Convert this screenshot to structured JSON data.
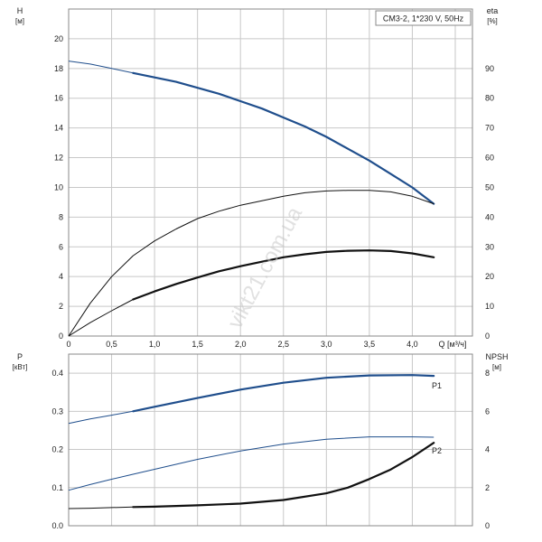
{
  "colors": {
    "grid": "#c8c8c8",
    "frame": "#8a8a8a",
    "blue": "#1f4e8c",
    "black": "#111111"
  },
  "watermark": "vikt21.com.ua",
  "chart_data": [
    {
      "type": "line",
      "title": "CM3-2, 1*230 V, 50Hz",
      "xlabel": "Q [м³/ч]",
      "ylabel": "H",
      "ylabel_unit": "[м]",
      "y2label": "eta",
      "y2label_unit": "[%]",
      "xlim": [
        0,
        4.7
      ],
      "ylim": [
        0,
        22
      ],
      "y2lim": [
        0,
        110
      ],
      "x_ticks": [
        {
          "v": 0,
          "t": "0"
        },
        {
          "v": 0.5,
          "t": "0,5"
        },
        {
          "v": 1.0,
          "t": "1,0"
        },
        {
          "v": 1.5,
          "t": "1,5"
        },
        {
          "v": 2.0,
          "t": "2,0"
        },
        {
          "v": 2.5,
          "t": "2,5"
        },
        {
          "v": 3.0,
          "t": "3,0"
        },
        {
          "v": 3.5,
          "t": "3,5"
        },
        {
          "v": 4.0,
          "t": "4,0"
        }
      ],
      "y_ticks": [
        {
          "v": 0,
          "t": "0"
        },
        {
          "v": 2,
          "t": "2"
        },
        {
          "v": 4,
          "t": "4"
        },
        {
          "v": 6,
          "t": "6"
        },
        {
          "v": 8,
          "t": "8"
        },
        {
          "v": 10,
          "t": "10"
        },
        {
          "v": 12,
          "t": "12"
        },
        {
          "v": 14,
          "t": "14"
        },
        {
          "v": 16,
          "t": "16"
        },
        {
          "v": 18,
          "t": "18"
        },
        {
          "v": 20,
          "t": "20"
        }
      ],
      "y2_ticks": [
        {
          "v": 0,
          "t": "0"
        },
        {
          "v": 10,
          "t": "10"
        },
        {
          "v": 20,
          "t": "20"
        },
        {
          "v": 30,
          "t": "30"
        },
        {
          "v": 40,
          "t": "40"
        },
        {
          "v": 50,
          "t": "50"
        },
        {
          "v": 60,
          "t": "60"
        },
        {
          "v": 70,
          "t": "70"
        },
        {
          "v": 80,
          "t": "80"
        },
        {
          "v": 90,
          "t": "90"
        }
      ],
      "series": [
        {
          "id": "h-curve",
          "axis": "y",
          "color": "blue",
          "thin_until": 0.75,
          "x": [
            0,
            0.25,
            0.5,
            0.75,
            1.0,
            1.25,
            1.5,
            1.75,
            2.0,
            2.25,
            2.5,
            2.75,
            3.0,
            3.25,
            3.5,
            3.75,
            4.0,
            4.25
          ],
          "y": [
            18.5,
            18.3,
            18.0,
            17.7,
            17.4,
            17.1,
            16.7,
            16.3,
            15.8,
            15.3,
            14.7,
            14.1,
            13.4,
            12.6,
            11.8,
            10.9,
            10.0,
            8.9
          ]
        },
        {
          "id": "eta-curve-1",
          "axis": "y2",
          "color": "black",
          "thin_until": 4.3,
          "x": [
            0,
            0.25,
            0.5,
            0.75,
            1.0,
            1.25,
            1.5,
            1.75,
            2.0,
            2.25,
            2.5,
            2.75,
            3.0,
            3.25,
            3.5,
            3.75,
            4.0,
            4.25
          ],
          "y": [
            0,
            11,
            20,
            27,
            32,
            36,
            39.5,
            42,
            44,
            45.5,
            47,
            48.2,
            48.8,
            49,
            49,
            48.5,
            47,
            44.5
          ]
        },
        {
          "id": "eta-curve-2",
          "axis": "y2",
          "color": "black",
          "thin_until": 0.75,
          "x": [
            0,
            0.25,
            0.5,
            0.75,
            1.0,
            1.25,
            1.5,
            1.75,
            2.0,
            2.25,
            2.5,
            2.75,
            3.0,
            3.25,
            3.5,
            3.75,
            4.0,
            4.25
          ],
          "y": [
            0,
            4.5,
            8.5,
            12.3,
            15,
            17.5,
            19.7,
            21.8,
            23.5,
            25,
            26.5,
            27.5,
            28.3,
            28.7,
            28.8,
            28.6,
            27.8,
            26.5
          ]
        }
      ]
    },
    {
      "type": "line",
      "xlim": [
        0,
        4.7
      ],
      "ylim": [
        0,
        0.45
      ],
      "y2lim": [
        0,
        9
      ],
      "ylabel": "P",
      "ylabel_unit": "[кВт]",
      "y2label": "NPSH",
      "y2label_unit": "[м]",
      "y_ticks": [
        {
          "v": 0,
          "t": "0.0"
        },
        {
          "v": 0.1,
          "t": "0.1"
        },
        {
          "v": 0.2,
          "t": "0.2"
        },
        {
          "v": 0.3,
          "t": "0.3"
        },
        {
          "v": 0.4,
          "t": "0.4"
        }
      ],
      "y2_ticks": [
        {
          "v": 0,
          "t": "0"
        },
        {
          "v": 2,
          "t": "2"
        },
        {
          "v": 4,
          "t": "4"
        },
        {
          "v": 6,
          "t": "6"
        },
        {
          "v": 8,
          "t": "8"
        }
      ],
      "series": [
        {
          "id": "p1-curve",
          "name": "P1",
          "axis": "y",
          "color": "blue",
          "thin_until": 0.75,
          "x": [
            0,
            0.25,
            0.5,
            0.75,
            1.0,
            1.5,
            2.0,
            2.5,
            3.0,
            3.5,
            4.0,
            4.25
          ],
          "y": [
            0.268,
            0.28,
            0.29,
            0.3,
            0.312,
            0.335,
            0.357,
            0.375,
            0.388,
            0.394,
            0.395,
            0.393
          ]
        },
        {
          "id": "p2-curve",
          "name": "P2",
          "axis": "y",
          "color": "blue",
          "thin_until": 4.3,
          "x": [
            0,
            0.25,
            0.5,
            0.75,
            1.0,
            1.5,
            2.0,
            2.5,
            3.0,
            3.5,
            4.0,
            4.25
          ],
          "y": [
            0.093,
            0.108,
            0.122,
            0.135,
            0.148,
            0.174,
            0.196,
            0.214,
            0.227,
            0.233,
            0.233,
            0.232
          ]
        },
        {
          "id": "npsh-curve",
          "axis": "y2",
          "color": "black",
          "thin_until": 0.75,
          "x": [
            0,
            0.25,
            0.5,
            0.75,
            1.0,
            1.5,
            2.0,
            2.5,
            3.0,
            3.25,
            3.5,
            3.75,
            4.0,
            4.25
          ],
          "y": [
            0.9,
            0.92,
            0.95,
            0.98,
            1.0,
            1.07,
            1.16,
            1.35,
            1.7,
            2.0,
            2.45,
            2.95,
            3.6,
            4.35
          ]
        }
      ]
    }
  ]
}
